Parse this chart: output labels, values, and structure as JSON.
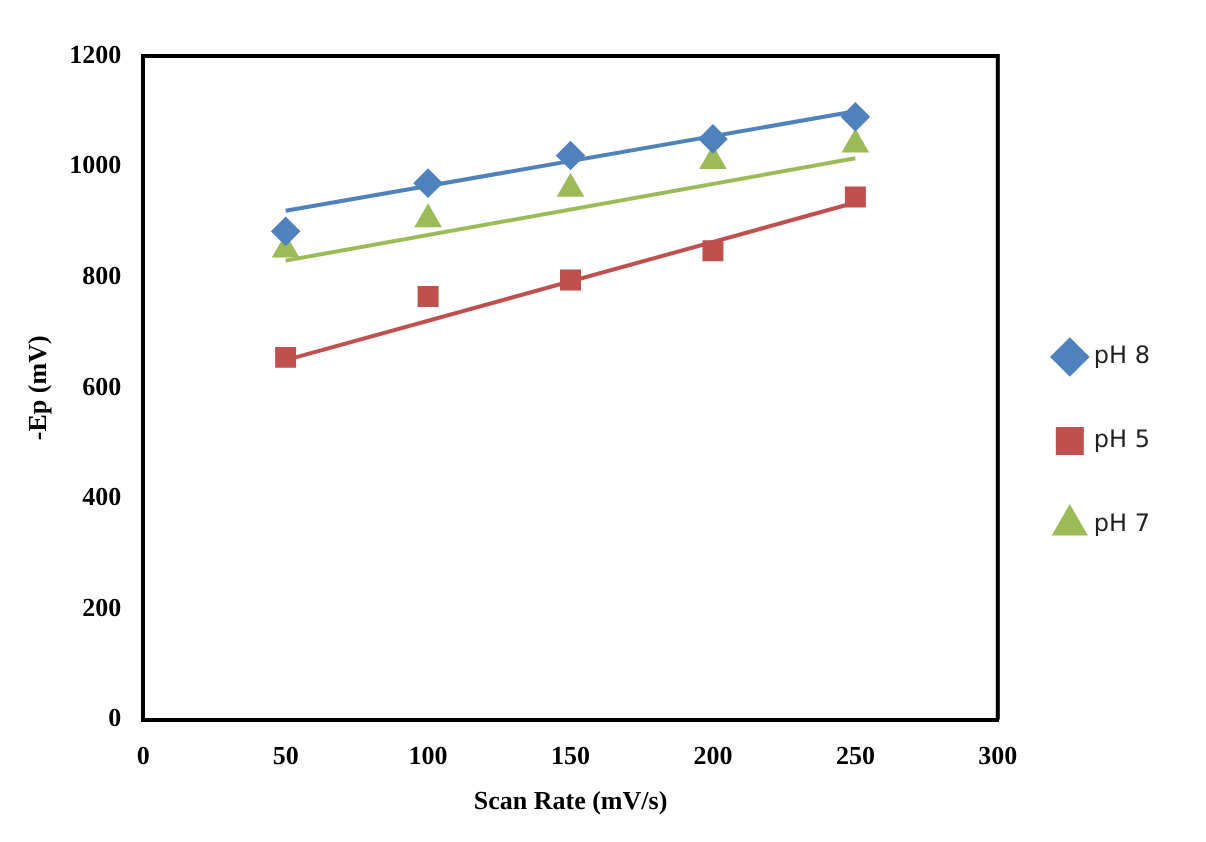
{
  "chart_data": {
    "type": "scatter",
    "xlabel": "Scan Rate (mV/s)",
    "ylabel": "-Ep (mV)",
    "xlim": [
      0,
      300
    ],
    "xticks": [
      0,
      50,
      100,
      150,
      200,
      250,
      300
    ],
    "ylim": [
      0,
      1200
    ],
    "yticks": [
      0,
      200,
      400,
      600,
      800,
      1000,
      1200
    ],
    "grid": false,
    "legend": "right",
    "series": [
      {
        "name": "pH 8",
        "color": "#4f81bd",
        "marker": "diamond",
        "x": [
          50,
          100,
          150,
          200,
          250
        ],
        "values": [
          883,
          970,
          1020,
          1050,
          1090
        ]
      },
      {
        "name": "pH 5",
        "color": "#c0504d",
        "marker": "square",
        "x": [
          50,
          100,
          150,
          200,
          250
        ],
        "values": [
          655,
          765,
          795,
          848,
          945
        ]
      },
      {
        "name": "pH 7",
        "color": "#9bbb59",
        "marker": "triangle",
        "x": [
          50,
          100,
          150,
          200,
          250
        ],
        "values": [
          850,
          905,
          960,
          1010,
          1040
        ]
      },
      {
        "type": "line",
        "color": "#4f81bd",
        "marker": "none",
        "line_style": "solid",
        "x": [
          50,
          250
        ],
        "values": [
          920,
          1100
        ]
      },
      {
        "type": "line",
        "color": "#c0504d",
        "marker": "none",
        "line_style": "solid",
        "x": [
          50,
          250
        ],
        "values": [
          650,
          935
        ]
      },
      {
        "type": "line",
        "color": "#9bbb59",
        "marker": "none",
        "line_style": "solid",
        "x": [
          50,
          250
        ],
        "values": [
          830,
          1015
        ]
      }
    ]
  }
}
